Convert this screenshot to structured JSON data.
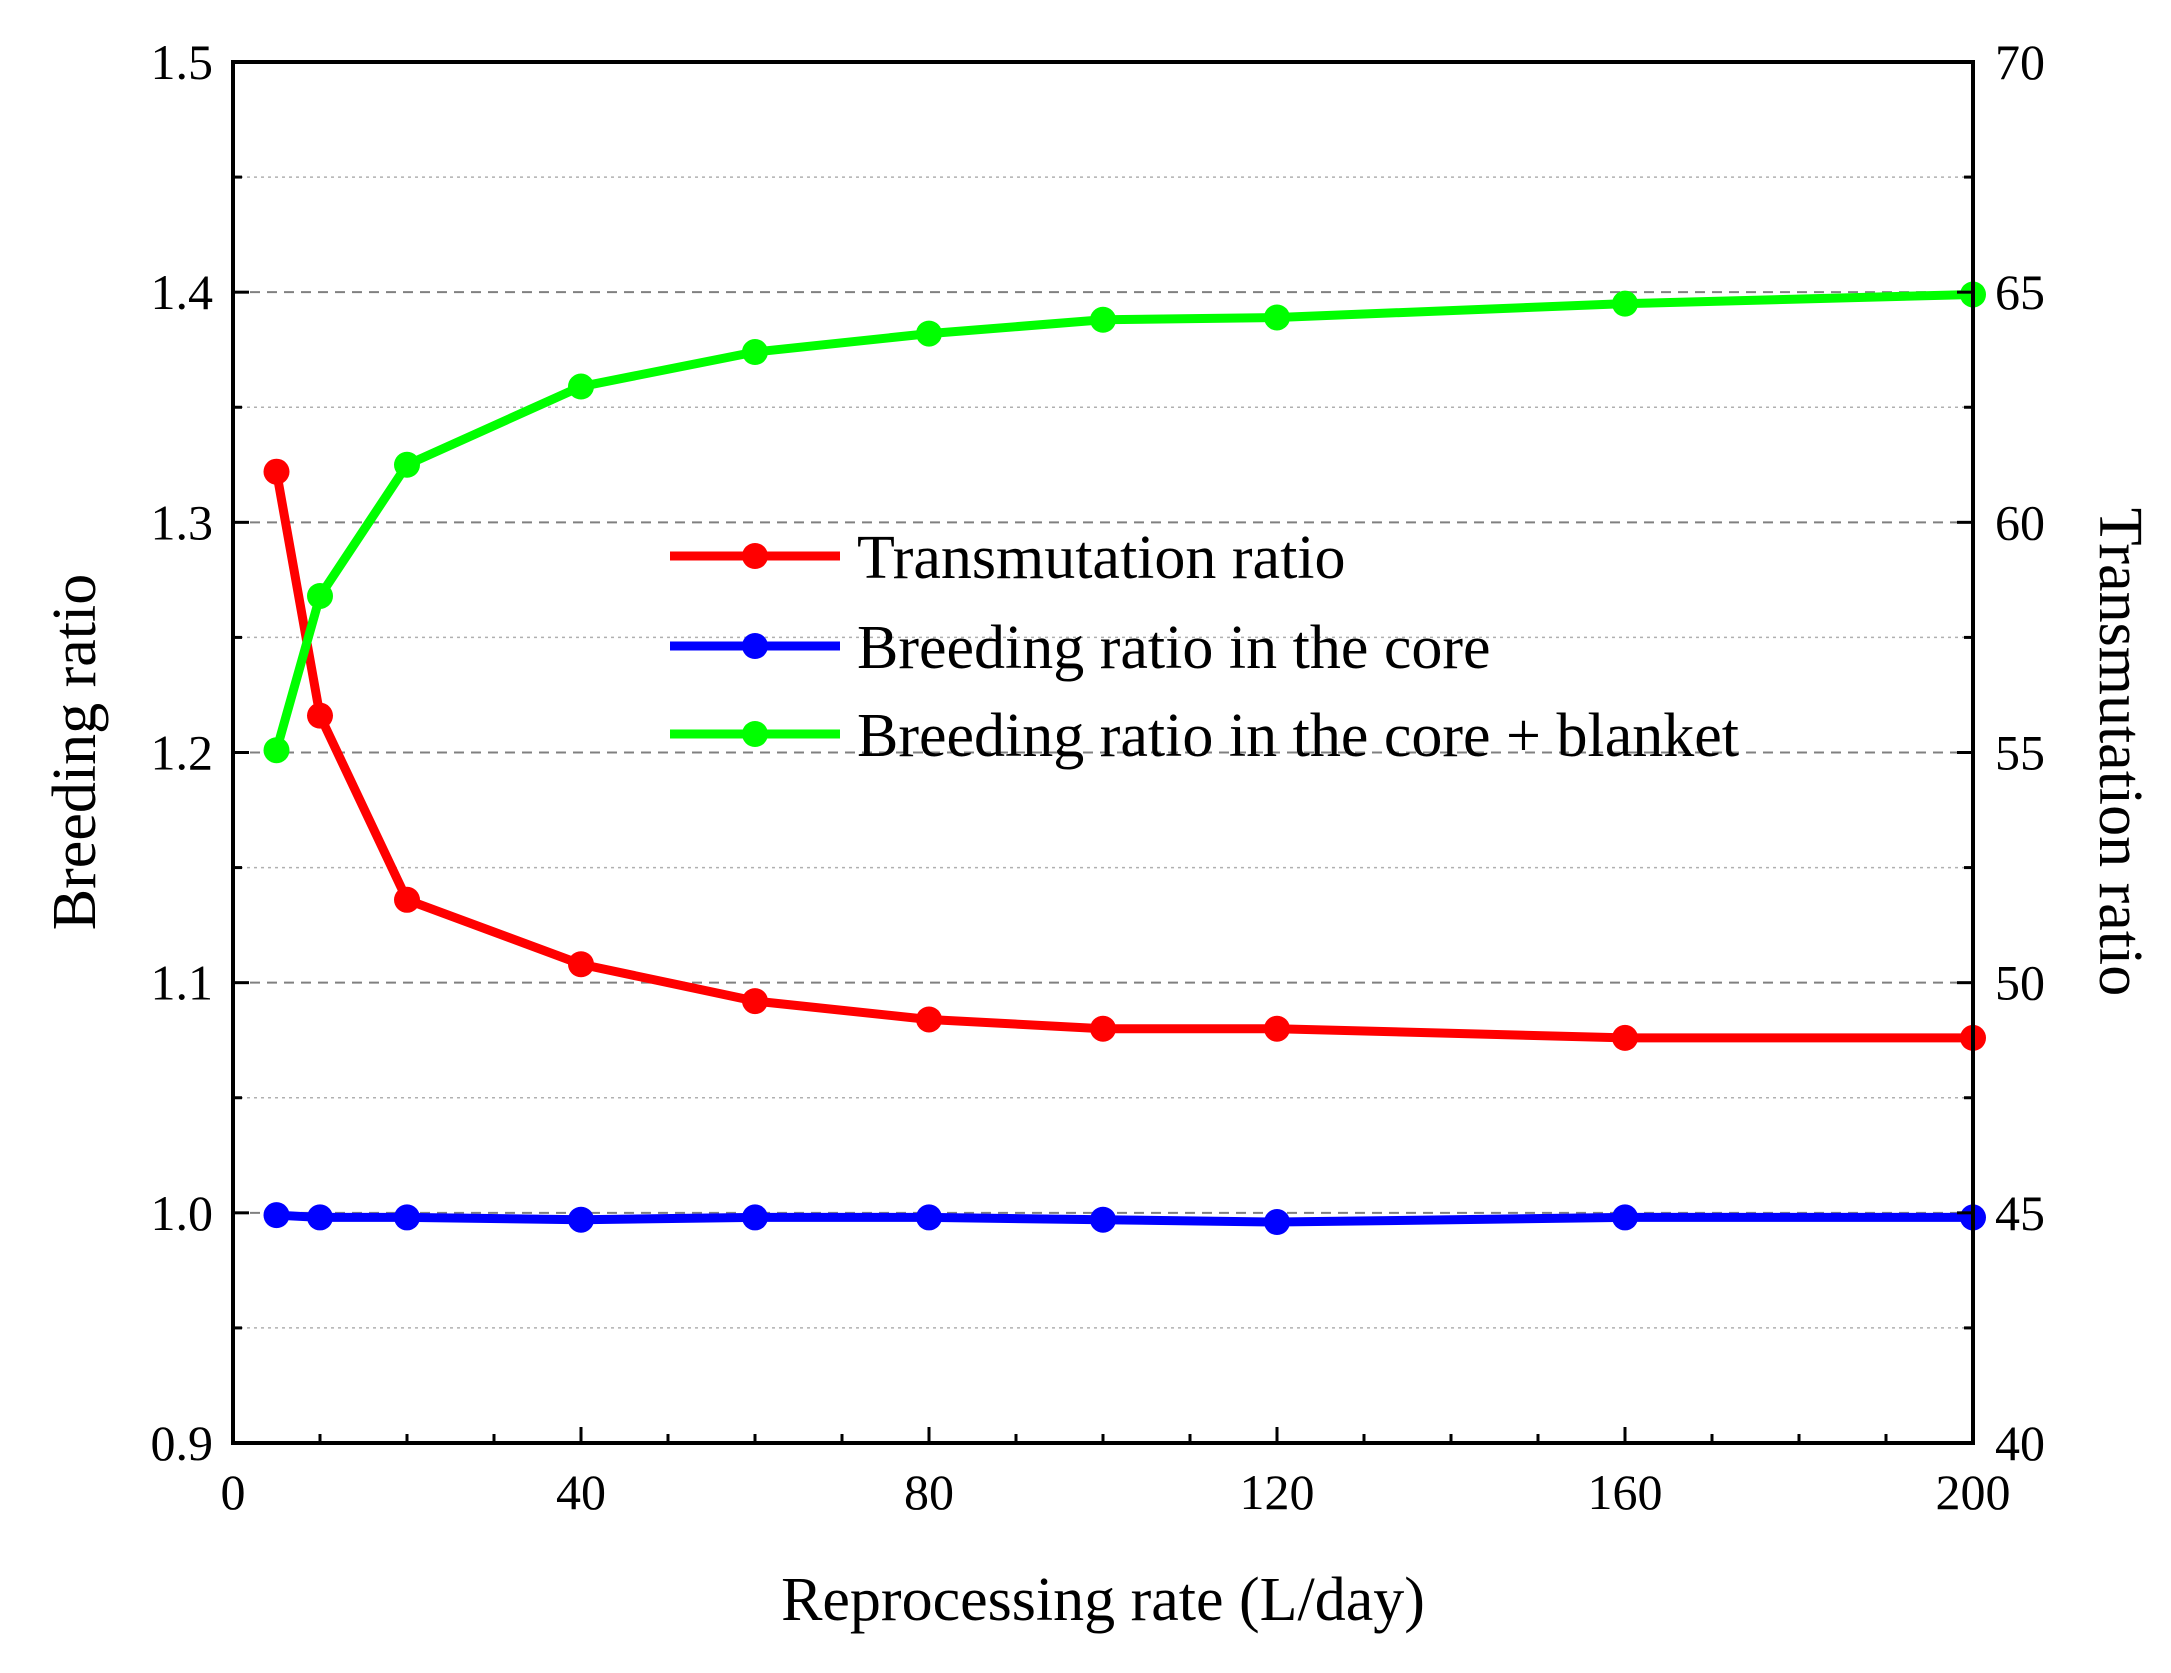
{
  "chart_data": {
    "type": "line",
    "title": "",
    "xlabel": "Reprocessing rate (L/day)",
    "ylabel": "Breeding ratio",
    "y2label": "Transmutation ratio",
    "xlim": [
      0,
      200
    ],
    "ylim": [
      0.9,
      1.5
    ],
    "y2lim": [
      40,
      70
    ],
    "x_ticks": [
      "0",
      "40",
      "80",
      "120",
      "160",
      "200"
    ],
    "y_ticks": [
      "0.9",
      "1.0",
      "1.1",
      "1.2",
      "1.3",
      "1.4",
      "1.5"
    ],
    "y2_ticks": [
      "40",
      "45",
      "50",
      "55",
      "60",
      "65",
      "70"
    ],
    "grid": "horizontal dashed",
    "legend_position": "center-right",
    "series": [
      {
        "name": "Transmutation ratio",
        "axis": "right",
        "color": "#ff0000",
        "x": [
          5,
          10,
          20,
          40,
          60,
          80,
          100,
          120,
          160,
          200
        ],
        "values": [
          61.1,
          55.8,
          51.8,
          50.4,
          49.6,
          49.2,
          49.0,
          49.0,
          48.8,
          48.8
        ]
      },
      {
        "name": "Breeding ratio in the core",
        "axis": "left",
        "color": "#0000ff",
        "x": [
          5,
          10,
          20,
          40,
          60,
          80,
          100,
          120,
          160,
          200
        ],
        "values": [
          0.999,
          0.998,
          0.998,
          0.997,
          0.998,
          0.998,
          0.997,
          0.996,
          0.998,
          0.998
        ]
      },
      {
        "name": "Breeding ratio in the core + blanket",
        "axis": "left",
        "color": "#00ff00",
        "x": [
          5,
          10,
          20,
          40,
          60,
          80,
          100,
          120,
          160,
          200
        ],
        "values": [
          1.201,
          1.268,
          1.325,
          1.359,
          1.374,
          1.382,
          1.388,
          1.389,
          1.395,
          1.399
        ]
      }
    ]
  }
}
